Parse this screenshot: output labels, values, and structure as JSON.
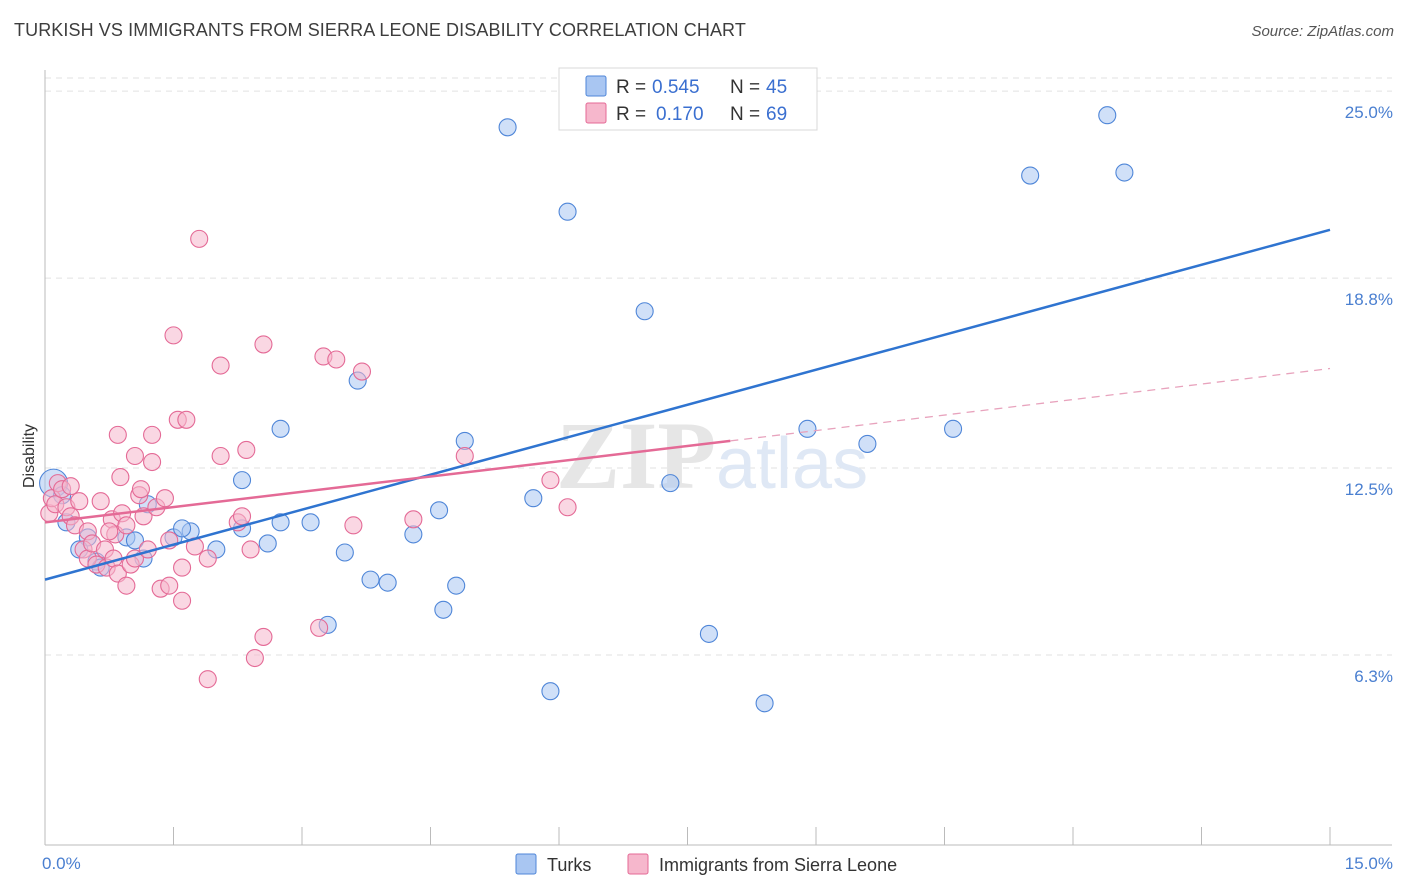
{
  "header": {
    "title": "TURKISH VS IMMIGRANTS FROM SIERRA LEONE DISABILITY CORRELATION CHART",
    "source": "Source: ZipAtlas.com"
  },
  "watermark": {
    "zip": "ZIP",
    "atlas": "atlas"
  },
  "legend": {
    "rows": [
      {
        "r_label": "R =",
        "r_value": "0.545",
        "n_label": "N =",
        "n_value": "45",
        "color": "#a9c6f2"
      },
      {
        "r_label": "R =",
        "r_value": "0.170",
        "n_label": "N =",
        "n_value": "69",
        "color": "#f6b7cc"
      }
    ]
  },
  "bottom_legend": [
    {
      "label": "Turks",
      "color": "#a9c6f2"
    },
    {
      "label": "Immigrants from Sierra Leone",
      "color": "#f6b7cc"
    }
  ],
  "chart_data": {
    "type": "scatter",
    "title": "TURKISH VS IMMIGRANTS FROM SIERRA LEONE DISABILITY CORRELATION CHART",
    "xlabel": "",
    "ylabel": "Disability",
    "xlim": [
      0,
      15
    ],
    "ylim": [
      0,
      25.7
    ],
    "x_tick_labels": [
      "0.0%",
      "15.0%"
    ],
    "y_ticks": [
      6.3,
      12.5,
      18.8,
      25.0
    ],
    "y_tick_labels": [
      "6.3%",
      "12.5%",
      "18.8%",
      "25.0%"
    ],
    "grid": true,
    "legend_position": "top-center",
    "series": [
      {
        "name": "Turks",
        "color": "#4f86d8",
        "fill": "#a9c6f2",
        "trend": {
          "x": [
            0,
            15
          ],
          "y": [
            8.8,
            20.4
          ],
          "style": "solid"
        },
        "points": [
          [
            0.1,
            12.0
          ],
          [
            0.2,
            11.6
          ],
          [
            0.5,
            10.2
          ],
          [
            0.6,
            9.4
          ],
          [
            0.25,
            10.7
          ],
          [
            0.4,
            9.8
          ],
          [
            0.95,
            10.2
          ],
          [
            1.05,
            10.1
          ],
          [
            1.2,
            11.3
          ],
          [
            1.7,
            10.4
          ],
          [
            1.5,
            10.2
          ],
          [
            2.3,
            10.5
          ],
          [
            2.3,
            12.1
          ],
          [
            2.0,
            9.8
          ],
          [
            2.6,
            10.0
          ],
          [
            2.75,
            10.7
          ],
          [
            2.75,
            13.8
          ],
          [
            3.1,
            10.7
          ],
          [
            3.3,
            7.3
          ],
          [
            3.5,
            9.7
          ],
          [
            3.65,
            15.4
          ],
          [
            3.8,
            8.8
          ],
          [
            4.0,
            8.7
          ],
          [
            4.3,
            10.3
          ],
          [
            4.6,
            11.1
          ],
          [
            4.65,
            7.8
          ],
          [
            4.8,
            8.6
          ],
          [
            4.9,
            13.4
          ],
          [
            5.4,
            23.8
          ],
          [
            5.7,
            11.5
          ],
          [
            5.9,
            5.1
          ],
          [
            6.1,
            21.0
          ],
          [
            7.0,
            17.7
          ],
          [
            7.3,
            12.0
          ],
          [
            7.75,
            7.0
          ],
          [
            8.4,
            4.7
          ],
          [
            8.9,
            13.8
          ],
          [
            9.6,
            13.3
          ],
          [
            10.6,
            13.8
          ],
          [
            11.5,
            22.2
          ],
          [
            12.4,
            24.2
          ],
          [
            12.6,
            22.3
          ],
          [
            0.65,
            9.2
          ],
          [
            1.6,
            10.5
          ],
          [
            1.15,
            9.5
          ]
        ]
      },
      {
        "name": "Immigrants from Sierra Leone",
        "color": "#e46a96",
        "fill": "#f6b7cc",
        "trend": {
          "x": [
            0,
            8.0,
            15
          ],
          "y": [
            10.7,
            13.4,
            15.8
          ],
          "style": "solid-then-dashed",
          "solid_until": 8.0
        },
        "points": [
          [
            0.05,
            11.0
          ],
          [
            0.08,
            11.5
          ],
          [
            0.12,
            11.3
          ],
          [
            0.15,
            12.0
          ],
          [
            0.2,
            11.8
          ],
          [
            0.25,
            11.2
          ],
          [
            0.3,
            10.9
          ],
          [
            0.35,
            10.6
          ],
          [
            0.4,
            11.4
          ],
          [
            0.45,
            9.8
          ],
          [
            0.5,
            9.5
          ],
          [
            0.5,
            10.4
          ],
          [
            0.55,
            10.0
          ],
          [
            0.6,
            9.3
          ],
          [
            0.65,
            11.4
          ],
          [
            0.7,
            9.8
          ],
          [
            0.72,
            9.2
          ],
          [
            0.78,
            10.8
          ],
          [
            0.8,
            9.5
          ],
          [
            0.82,
            10.3
          ],
          [
            0.85,
            9.0
          ],
          [
            0.85,
            13.6
          ],
          [
            0.88,
            12.2
          ],
          [
            0.9,
            11.0
          ],
          [
            0.95,
            8.6
          ],
          [
            0.95,
            10.6
          ],
          [
            1.0,
            9.3
          ],
          [
            1.05,
            12.9
          ],
          [
            1.05,
            9.5
          ],
          [
            1.1,
            11.6
          ],
          [
            1.12,
            11.8
          ],
          [
            1.15,
            10.9
          ],
          [
            1.2,
            9.8
          ],
          [
            1.25,
            13.6
          ],
          [
            1.25,
            12.7
          ],
          [
            1.3,
            11.2
          ],
          [
            1.35,
            8.5
          ],
          [
            1.4,
            11.5
          ],
          [
            1.45,
            8.6
          ],
          [
            1.5,
            16.9
          ],
          [
            1.55,
            14.1
          ],
          [
            1.6,
            8.1
          ],
          [
            1.6,
            9.2
          ],
          [
            1.65,
            14.1
          ],
          [
            1.75,
            9.9
          ],
          [
            1.8,
            20.1
          ],
          [
            1.9,
            9.5
          ],
          [
            1.9,
            5.5
          ],
          [
            2.05,
            15.9
          ],
          [
            2.05,
            12.9
          ],
          [
            2.25,
            10.7
          ],
          [
            2.3,
            10.9
          ],
          [
            2.35,
            13.1
          ],
          [
            2.4,
            9.8
          ],
          [
            2.45,
            6.2
          ],
          [
            2.55,
            16.6
          ],
          [
            2.55,
            6.9
          ],
          [
            3.2,
            7.2
          ],
          [
            3.25,
            16.2
          ],
          [
            3.4,
            16.1
          ],
          [
            3.7,
            15.7
          ],
          [
            3.6,
            10.6
          ],
          [
            4.3,
            10.8
          ],
          [
            4.9,
            12.9
          ],
          [
            5.9,
            12.1
          ],
          [
            6.1,
            11.2
          ],
          [
            0.75,
            10.4
          ],
          [
            1.45,
            10.1
          ],
          [
            0.3,
            11.9
          ]
        ]
      }
    ]
  }
}
